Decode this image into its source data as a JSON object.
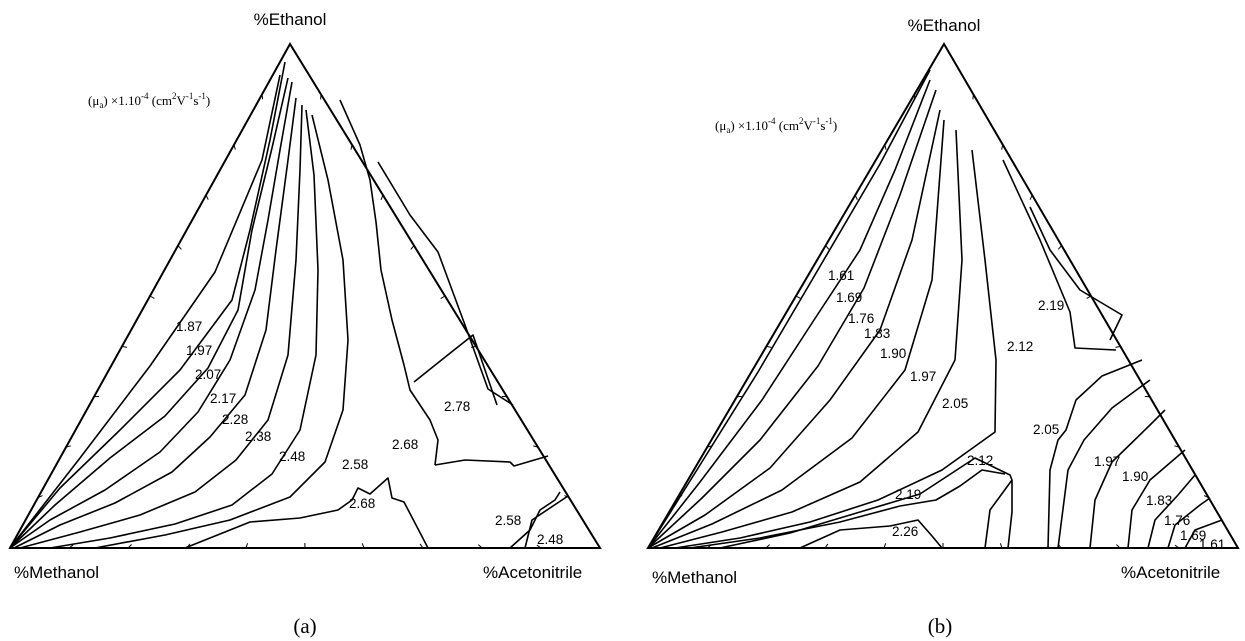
{
  "chart_data": [
    {
      "type": "ternary-contour",
      "caption": "(a)",
      "unit_label": "(μa) ×1.10-4 (cm2V-1s-1)",
      "unit_label_parts": {
        "a": "(μ",
        "b": "a",
        "c": ") ×1.10",
        "d": "-4",
        "e": " (cm",
        "f": "2",
        "g": "V",
        "h": "-1",
        "i": "s",
        "j": "-1",
        "k": ")"
      },
      "apex_labels": {
        "top": "%Ethanol",
        "left": "%Methanol",
        "right": "%Acetonitrile"
      },
      "contour_labels": [
        "1.87",
        "1.97",
        "2.07",
        "2.17",
        "2.28",
        "2.38",
        "2.48",
        "2.58",
        "2.68",
        "2.68",
        "2.78",
        "2.58",
        "2.48"
      ],
      "contour_levels": [
        1.87,
        1.97,
        2.07,
        2.17,
        2.28,
        2.38,
        2.48,
        2.58,
        2.68,
        2.78
      ]
    },
    {
      "type": "ternary-contour",
      "caption": "(b)",
      "unit_label": "(μa) ×1.10-4 (cm2V-1s-1)",
      "unit_label_parts": {
        "a": "(μ",
        "b": "a",
        "c": ") ×1.10",
        "d": "-4",
        "e": " (cm",
        "f": "2",
        "g": "V",
        "h": "-1",
        "i": "s",
        "j": "-1",
        "k": ")"
      },
      "apex_labels": {
        "top": "%Ethanol",
        "left": "%Methanol",
        "right": "%Acetonitrile"
      },
      "contour_labels": [
        "1.61",
        "1.69",
        "1.76",
        "1.83",
        "1.90",
        "1.97",
        "2.05",
        "2.12",
        "2.19",
        "2.12",
        "2.19",
        "2.26",
        "2.05",
        "1.97",
        "1.90",
        "1.83",
        "1.76",
        "1.69",
        "1.61"
      ],
      "contour_levels": [
        1.61,
        1.69,
        1.76,
        1.83,
        1.9,
        1.97,
        2.05,
        2.12,
        2.19,
        2.26
      ]
    }
  ]
}
